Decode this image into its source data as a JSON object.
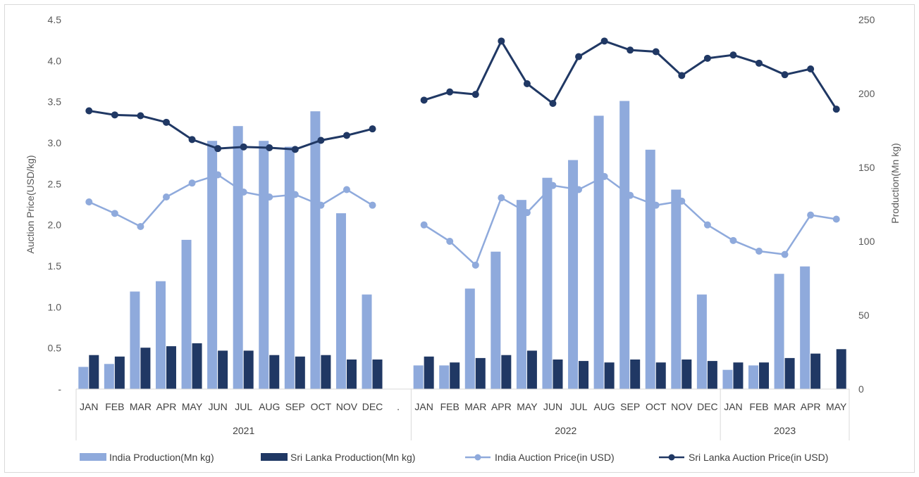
{
  "chart_data": {
    "type": "bar",
    "title": "",
    "ylabel_left": "Auction Price(USD/kg)",
    "ylabel_right": "Production(Mn kg)",
    "ylim_left": [
      0,
      4.5
    ],
    "ylim_right": [
      0,
      250
    ],
    "left_ticks": [
      "-",
      "0.5",
      "1.0",
      "1.5",
      "2.0",
      "2.5",
      "3.0",
      "3.5",
      "4.0",
      "4.5"
    ],
    "right_ticks": [
      "0",
      "50",
      "100",
      "150",
      "200",
      "250"
    ],
    "groups": [
      {
        "label": "2021",
        "months": [
          "JAN",
          "FEB",
          "MAR",
          "APR",
          "MAY",
          "JUN",
          "JUL",
          "AUG",
          "SEP",
          "OCT",
          "NOV",
          "DEC",
          "."
        ]
      },
      {
        "label": "2022",
        "months": [
          "JAN",
          "FEB",
          "MAR",
          "APR",
          "MAY",
          "JUN",
          "JUL",
          "AUG",
          "SEP",
          "OCT",
          "NOV",
          "DEC"
        ]
      },
      {
        "label": "2023",
        "months": [
          "JAN",
          "FEB",
          "MAR",
          "APR",
          "MAY"
        ]
      }
    ],
    "series": [
      {
        "name": "India Production(Mn kg)",
        "kind": "bar",
        "axis": "right",
        "color": "#8faadc",
        "values": [
          15,
          17,
          66,
          73,
          101,
          168,
          178,
          168,
          164,
          188,
          119,
          64,
          null,
          16,
          16,
          68,
          93,
          128,
          143,
          155,
          185,
          195,
          162,
          135,
          64,
          13,
          16,
          78,
          83,
          null
        ]
      },
      {
        "name": "Sri Lanka Production(Mn kg)",
        "kind": "bar",
        "axis": "right",
        "color": "#203864",
        "values": [
          23,
          22,
          28,
          29,
          31,
          26,
          26,
          23,
          22,
          23,
          20,
          20,
          null,
          22,
          18,
          21,
          23,
          26,
          20,
          19,
          18,
          20,
          18,
          20,
          19,
          18,
          18,
          21,
          24,
          27
        ]
      },
      {
        "name": "India Auction Price(in USD)",
        "kind": "line",
        "axis": "left",
        "color": "#8faadc",
        "values": [
          2.28,
          2.14,
          1.98,
          2.34,
          2.51,
          2.61,
          2.4,
          2.34,
          2.37,
          2.24,
          2.43,
          2.24,
          null,
          2.0,
          1.8,
          1.51,
          2.33,
          2.15,
          2.48,
          2.43,
          2.59,
          2.36,
          2.24,
          2.29,
          2.0,
          1.81,
          1.68,
          1.64,
          2.12,
          2.07
        ]
      },
      {
        "name": "Sri Lanka Auction Price(in USD)",
        "kind": "line",
        "axis": "left",
        "color": "#203864",
        "values": [
          3.39,
          3.34,
          3.33,
          3.25,
          3.04,
          2.93,
          2.95,
          2.94,
          2.92,
          3.03,
          3.09,
          3.17,
          null,
          3.52,
          3.62,
          3.59,
          4.24,
          3.72,
          3.48,
          4.05,
          4.24,
          4.13,
          4.11,
          3.82,
          4.03,
          4.07,
          3.97,
          3.83,
          3.9,
          3.41
        ]
      }
    ],
    "legend": "bottom"
  }
}
